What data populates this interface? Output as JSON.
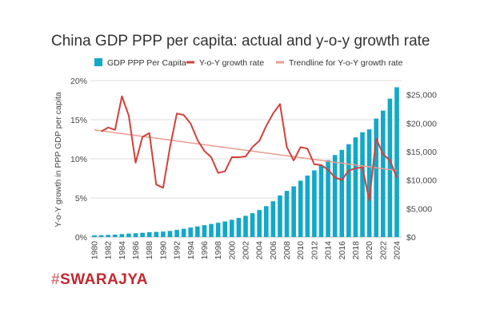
{
  "chart_data": {
    "type": "bar",
    "title": "China GDP PPP per capita: actual and y-o-y growth rate",
    "xlabel": "",
    "ylabel": "Y-o-Y growth in PPP GDP per capita",
    "y2label": "",
    "grid": true,
    "legend_position": "top",
    "legend": [
      {
        "name": "GDP PPP Per Capita",
        "type": "bar",
        "color": "#12a8c9"
      },
      {
        "name": "Y-o-Y growth rate",
        "type": "line",
        "color": "#d0413a"
      },
      {
        "name": "Trendline for Y-o-Y growth rate",
        "type": "line",
        "color": "#ec9a8f"
      }
    ],
    "x": [
      1980,
      1981,
      1982,
      1983,
      1984,
      1985,
      1986,
      1987,
      1988,
      1989,
      1990,
      1991,
      1992,
      1993,
      1994,
      1995,
      1996,
      1997,
      1998,
      1999,
      2000,
      2001,
      2002,
      2003,
      2004,
      2005,
      2006,
      2007,
      2008,
      2009,
      2010,
      2011,
      2012,
      2013,
      2014,
      2015,
      2016,
      2017,
      2018,
      2019,
      2020,
      2021,
      2022,
      2023,
      2024
    ],
    "x_tick_labels": [
      "1980",
      "1982",
      "1984",
      "1986",
      "1988",
      "1990",
      "1992",
      "1994",
      "1996",
      "1998",
      "2000",
      "2002",
      "2004",
      "2006",
      "2008",
      "2010",
      "2012",
      "2014",
      "2016",
      "2018",
      "2020",
      "2022",
      "2024"
    ],
    "y_left": {
      "range": [
        0,
        20
      ],
      "ticks": [
        0,
        5,
        10,
        15,
        20
      ],
      "tick_labels": [
        "0%",
        "5%",
        "10%",
        "15%",
        "20%"
      ]
    },
    "y_right": {
      "range": [
        0,
        27470
      ],
      "ticks": [
        0,
        5000,
        10000,
        15000,
        20000,
        25000
      ],
      "tick_labels": [
        "$0",
        "$5,000",
        "$10,000",
        "$15,000",
        "$20,000",
        "$25,000"
      ]
    },
    "series": [
      {
        "name": "GDP PPP Per Capita",
        "type": "bar",
        "axis": "right",
        "color": "#12a8c9",
        "values": [
          300,
          330,
          380,
          430,
          520,
          600,
          660,
          750,
          850,
          900,
          960,
          1070,
          1250,
          1450,
          1660,
          1870,
          2080,
          2300,
          2500,
          2730,
          3030,
          3350,
          3720,
          4180,
          4740,
          5420,
          6280,
          7300,
          8100,
          8900,
          9900,
          10800,
          11700,
          12600,
          13500,
          14400,
          15300,
          16300,
          17500,
          18400,
          18900,
          20800,
          22200,
          24300,
          26300
        ]
      },
      {
        "name": "Y-o-Y growth rate",
        "type": "line",
        "axis": "left",
        "color": "#d0413a",
        "values": [
          null,
          13.5,
          14.0,
          13.7,
          18.0,
          15.5,
          9.5,
          12.8,
          13.3,
          6.7,
          6.3,
          11.5,
          15.8,
          15.6,
          14.5,
          12.4,
          11.0,
          10.2,
          8.2,
          8.4,
          10.2,
          10.2,
          10.3,
          11.5,
          12.3,
          14.2,
          15.8,
          17.0,
          11.5,
          9.8,
          11.5,
          11.3,
          9.3,
          9.2,
          8.6,
          7.6,
          7.3,
          8.5,
          8.8,
          8.9,
          4.7,
          12.6,
          10.6,
          9.8,
          7.6
        ]
      },
      {
        "name": "Trendline for Y-o-Y growth rate",
        "type": "line",
        "axis": "left",
        "color": "#ec9a8f",
        "start": {
          "x": 1980,
          "y": 13.7
        },
        "end": {
          "x": 2024,
          "y": 8.5
        }
      }
    ]
  },
  "branding": {
    "hash": "#",
    "name": "SWARAJYA"
  }
}
